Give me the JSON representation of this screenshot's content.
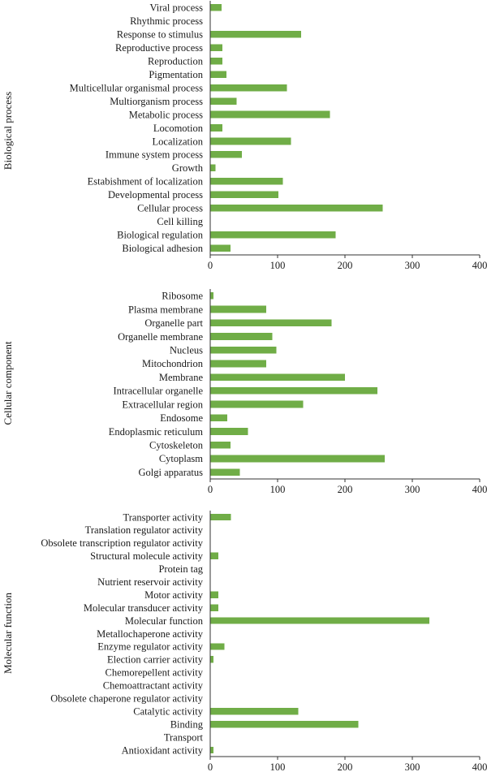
{
  "chart_data": [
    {
      "type": "bar",
      "orientation": "horizontal",
      "title": "",
      "ylabel": "Biological process",
      "xlabel": "",
      "xlim": [
        0,
        400
      ],
      "xticks": [
        0,
        100,
        200,
        300,
        400
      ],
      "bar_color": "#70ad47",
      "categories": [
        "Viral process",
        "Rhythmic process",
        "Response to stimulus",
        "Reproductive process",
        "Reproduction",
        "Pigmentation",
        "Multicellular organismal process",
        "Multiorganism process",
        "Metabolic process",
        "Locomotion",
        "Localization",
        "Immune system process",
        "Growth",
        "Estabishment of localization",
        "Developmental process",
        "Cellular process",
        "Cell killing",
        "Biological regulation",
        "Biological adhesion"
      ],
      "values": [
        17,
        0,
        135,
        18,
        18,
        24,
        114,
        39,
        178,
        18,
        120,
        47,
        8,
        108,
        101,
        256,
        0,
        186,
        30
      ]
    },
    {
      "type": "bar",
      "orientation": "horizontal",
      "title": "",
      "ylabel": "Cellular component",
      "xlabel": "",
      "xlim": [
        0,
        400
      ],
      "xticks": [
        0,
        100,
        200,
        300,
        400
      ],
      "bar_color": "#70ad47",
      "categories": [
        "Ribosome",
        "Plasma membrane",
        "Organelle part",
        "Organelle membrane",
        "Nucleus",
        "Mitochondrion",
        "Membrane",
        "Intracellular organelle",
        "Extracellular region",
        "Endosome",
        "Endoplasmic reticulum",
        "Cytoskeleton",
        "Cytoplasm",
        "Golgi apparatus"
      ],
      "values": [
        5,
        83,
        180,
        92,
        98,
        83,
        200,
        248,
        138,
        25,
        56,
        30,
        259,
        44
      ]
    },
    {
      "type": "bar",
      "orientation": "horizontal",
      "title": "",
      "ylabel": "Molecular function",
      "xlabel": "",
      "xlim": [
        0,
        400
      ],
      "xticks": [
        0,
        100,
        200,
        300,
        400
      ],
      "bar_color": "#70ad47",
      "categories": [
        "Transporter activity",
        "Translation regulator activity",
        "Obsolete transcription regulator activity",
        "Structural molecule activity",
        "Protein tag",
        "Nutrient reservoir activity",
        "Motor activity",
        "Molecular transducer activity",
        "Molecular function",
        "Metallochaperone activity",
        "Enzyme regulator activity",
        "Election carrier activity",
        "Chemorepellent activity",
        "Chemoattractant activity",
        "Obsolete chaperone regulator activity",
        "Catalytic activity",
        "Binding",
        "Transport",
        "Antioxidant activity"
      ],
      "values": [
        31,
        0,
        0,
        12,
        0,
        0,
        12,
        12,
        325,
        0,
        21,
        5,
        0,
        0,
        0,
        131,
        220,
        0,
        5
      ]
    }
  ]
}
